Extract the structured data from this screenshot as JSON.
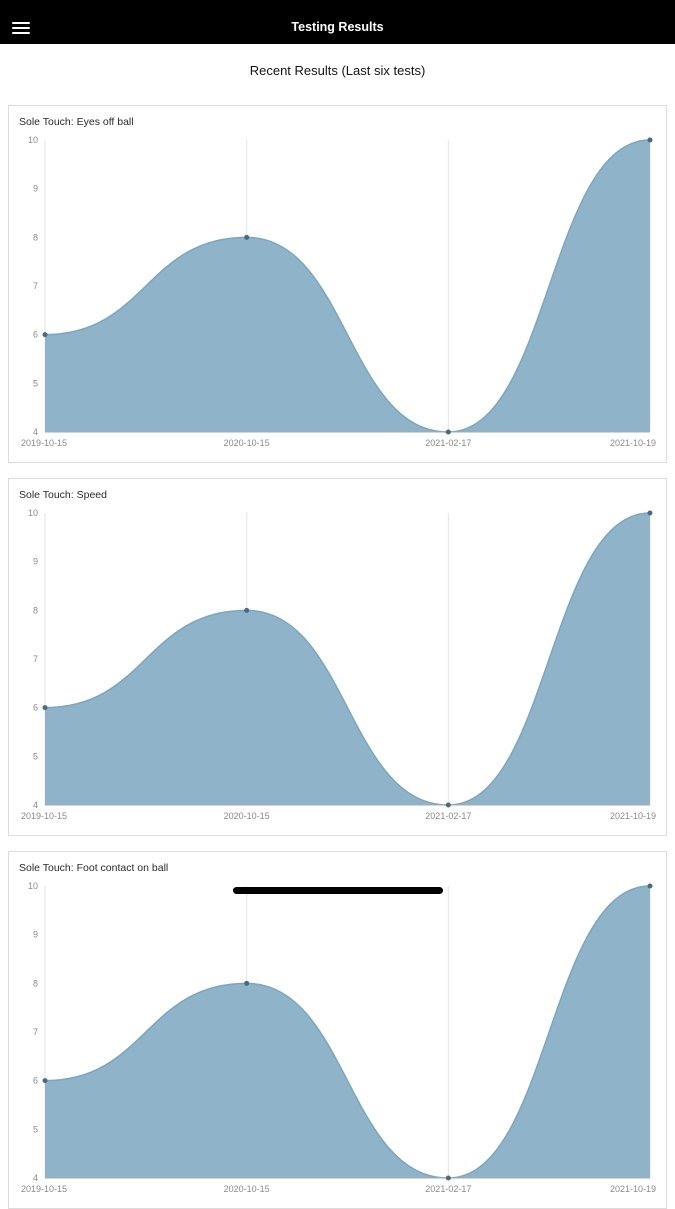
{
  "app_bar": {
    "title": "Testing Results",
    "menu_icon": "hamburger-menu-icon"
  },
  "page": {
    "subtitle": "Recent Results (Last six tests)"
  },
  "colors": {
    "fill": "#8fb3c8",
    "stroke": "#7ca6bd",
    "marker": "#4a6a80",
    "grid": "#e3e3e3",
    "axis": "#aaaaaa",
    "label": "#8a8a8a",
    "app_bar_bg": "#000000",
    "card_border": "#dcdcdc"
  },
  "chart_data": [
    {
      "type": "area",
      "title": "Sole Touch: Eyes off ball",
      "x": [
        "2019-10-15",
        "2020-10-15",
        "2021-02-17",
        "2021-10-19"
      ],
      "values": [
        6,
        8,
        4,
        10
      ],
      "ylim": [
        4,
        10
      ],
      "yticks": [
        10,
        9,
        8,
        7,
        6,
        5,
        4
      ],
      "grid": "vertical",
      "legend": "none"
    },
    {
      "type": "area",
      "title": "Sole Touch: Speed",
      "x": [
        "2019-10-15",
        "2020-10-15",
        "2021-02-17",
        "2021-10-19"
      ],
      "values": [
        6,
        8,
        4,
        10
      ],
      "ylim": [
        4,
        10
      ],
      "yticks": [
        10,
        9,
        8,
        7,
        6,
        5,
        4
      ],
      "grid": "vertical",
      "legend": "none"
    },
    {
      "type": "area",
      "title": "Sole Touch: Foot contact on ball",
      "x": [
        "2019-10-15",
        "2020-10-15",
        "2021-02-17",
        "2021-10-19"
      ],
      "values": [
        6,
        8,
        4,
        10
      ],
      "ylim": [
        4,
        10
      ],
      "yticks": [
        10,
        9,
        8,
        7,
        6,
        5,
        4
      ],
      "grid": "vertical",
      "legend": "none"
    }
  ]
}
